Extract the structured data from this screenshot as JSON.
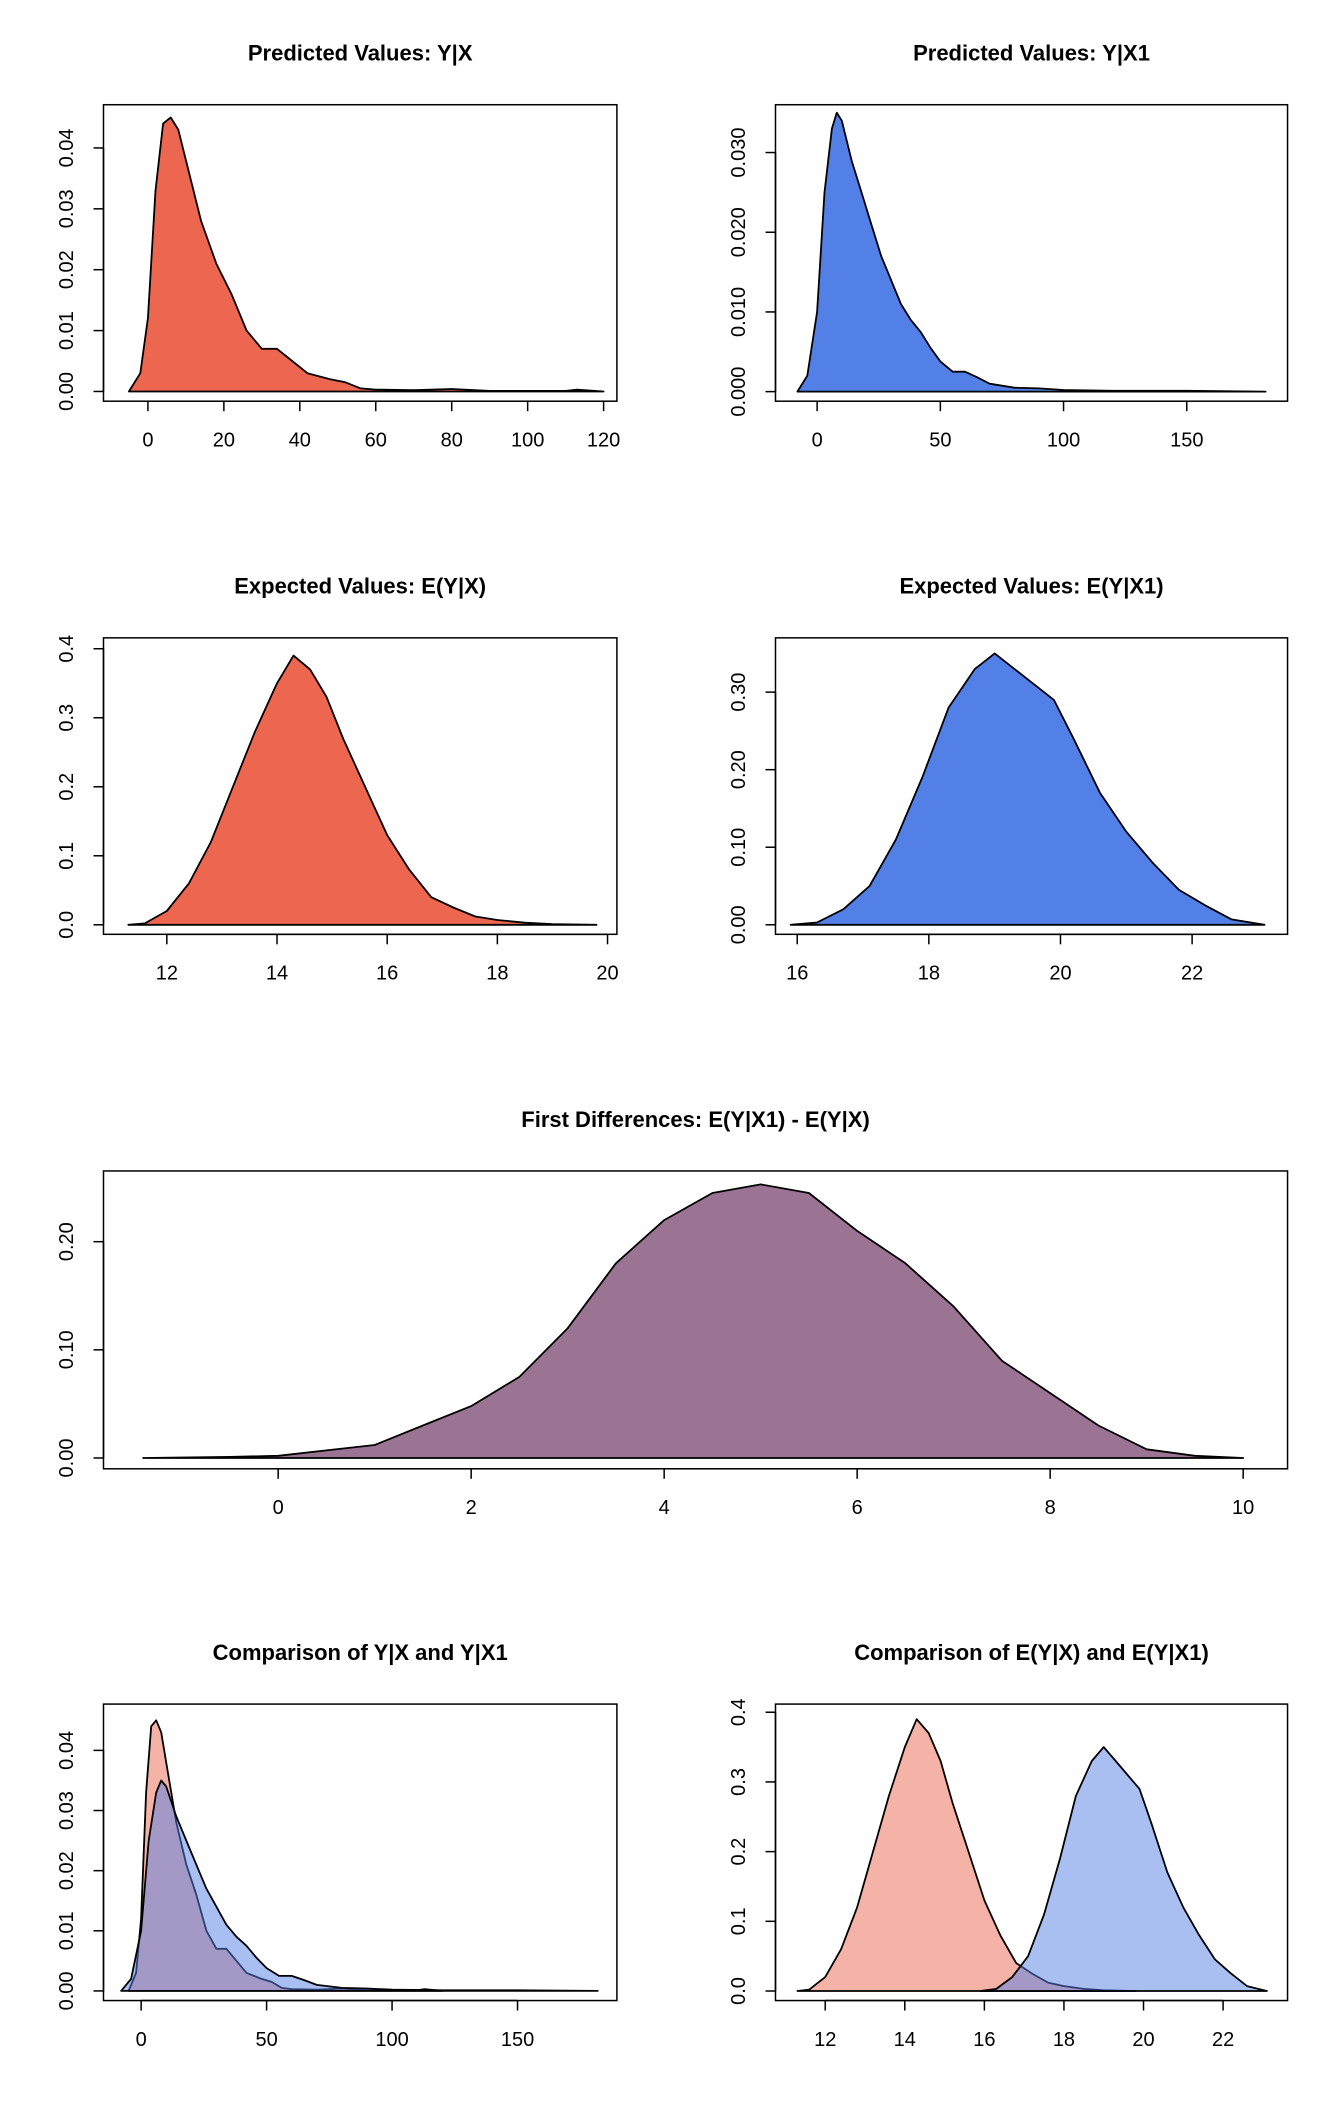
{
  "chart_data": [
    {
      "type": "area",
      "title": "Predicted Values: Y|X",
      "xlim": [
        -11.7,
        123.5
      ],
      "ylim": [
        -0.0016,
        0.0471
      ],
      "xticks": [
        0,
        20,
        40,
        60,
        80,
        100,
        120
      ],
      "yticks": [
        {
          "value": 0,
          "label": "0.00"
        },
        0.01,
        0.02,
        0.03,
        0.04
      ],
      "series": [
        {
          "color": "#ec6650",
          "x": [
            -5,
            -2,
            0,
            2,
            4,
            6,
            8,
            10,
            14,
            18,
            22,
            26,
            30,
            34,
            38,
            42,
            48,
            52,
            56,
            60,
            70,
            80,
            90,
            100,
            110,
            113,
            120
          ],
          "values": [
            0,
            0.003,
            0.012,
            0.033,
            0.044,
            0.045,
            0.043,
            0.038,
            0.028,
            0.021,
            0.016,
            0.01,
            0.007,
            0.007,
            0.005,
            0.003,
            0.002,
            0.0015,
            0.0005,
            0.0003,
            0.0002,
            0.0004,
            0.0001,
            0.0001,
            0.0001,
            0.0003,
            0
          ]
        }
      ]
    },
    {
      "type": "area",
      "title": "Predicted Values: Y|X1",
      "xlim": [
        -16.9,
        190.9
      ],
      "ylim": [
        -0.0012,
        0.036
      ],
      "xticks": [
        0,
        50,
        100,
        150
      ],
      "yticks": [
        {
          "value": 0,
          "label": "0.000"
        },
        {
          "value": 0.01,
          "label": "0.010"
        },
        {
          "value": 0.02,
          "label": "0.020"
        },
        {
          "value": 0.03,
          "label": "0.030"
        }
      ],
      "series": [
        {
          "color": "#5380e6",
          "x": [
            -8,
            -4,
            0,
            3,
            6,
            8,
            10,
            14,
            18,
            22,
            26,
            30,
            34,
            38,
            42,
            46,
            50,
            55,
            60,
            65,
            70,
            80,
            90,
            100,
            120,
            150,
            182
          ],
          "values": [
            0,
            0.002,
            0.01,
            0.025,
            0.033,
            0.035,
            0.034,
            0.029,
            0.025,
            0.021,
            0.017,
            0.014,
            0.011,
            0.009,
            0.0075,
            0.0055,
            0.0038,
            0.0025,
            0.0025,
            0.0018,
            0.001,
            0.0005,
            0.0004,
            0.0002,
            0.0001,
            0.0001,
            0
          ]
        }
      ]
    },
    {
      "type": "area",
      "title": "Expected Values: E(Y|X)",
      "xlim": [
        10.85,
        20.17
      ],
      "ylim": [
        -0.0138,
        0.4158
      ],
      "xticks": [
        12,
        14,
        16,
        18,
        20
      ],
      "yticks": [
        {
          "value": 0,
          "label": "0.0"
        },
        0.1,
        0.2,
        0.3,
        0.4
      ],
      "series": [
        {
          "color": "#ec6650",
          "x": [
            11.3,
            11.6,
            12,
            12.4,
            12.8,
            13.2,
            13.6,
            14,
            14.3,
            14.6,
            14.9,
            15.2,
            15.6,
            16,
            16.4,
            16.8,
            17.2,
            17.6,
            18,
            18.5,
            19,
            19.8
          ],
          "values": [
            0,
            0.002,
            0.02,
            0.06,
            0.12,
            0.2,
            0.28,
            0.35,
            0.39,
            0.37,
            0.33,
            0.27,
            0.2,
            0.13,
            0.08,
            0.04,
            0.025,
            0.012,
            0.007,
            0.003,
            0.001,
            0
          ]
        }
      ]
    },
    {
      "type": "area",
      "title": "Expected Values: E(Y|X1)",
      "xlim": [
        15.67,
        23.45
      ],
      "ylim": [
        -0.0123,
        0.37
      ],
      "xticks": [
        16,
        18,
        20,
        22
      ],
      "yticks": [
        {
          "value": 0,
          "label": "0.00"
        },
        {
          "value": 0.1,
          "label": "0.10"
        },
        {
          "value": 0.2,
          "label": "0.20"
        },
        {
          "value": 0.3,
          "label": "0.30"
        }
      ],
      "series": [
        {
          "color": "#5380e6",
          "x": [
            15.9,
            16.3,
            16.7,
            17.1,
            17.5,
            17.9,
            18.3,
            18.7,
            19,
            19.3,
            19.6,
            19.9,
            20.2,
            20.6,
            21,
            21.4,
            21.8,
            22.2,
            22.6,
            23.1
          ],
          "values": [
            0,
            0.003,
            0.02,
            0.05,
            0.11,
            0.19,
            0.28,
            0.33,
            0.35,
            0.33,
            0.31,
            0.29,
            0.24,
            0.17,
            0.12,
            0.08,
            0.045,
            0.025,
            0.007,
            0
          ]
        }
      ]
    },
    {
      "type": "area",
      "title": "First Differences: E(Y|X1) - E(Y|X)",
      "xlim": [
        -1.81,
        10.46
      ],
      "ylim": [
        -0.01,
        0.2654
      ],
      "xticks": [
        0,
        2,
        4,
        6,
        8,
        10
      ],
      "yticks": [
        {
          "value": 0,
          "label": "0.00"
        },
        {
          "value": 0.1,
          "label": "0.10"
        },
        {
          "value": 0.2,
          "label": "0.20"
        }
      ],
      "series": [
        {
          "color": "#9b7494",
          "x": [
            -1.4,
            -0.5,
            0,
            0.5,
            1,
            1.5,
            2,
            2.5,
            3,
            3.5,
            4,
            4.5,
            5,
            5.5,
            6,
            6.5,
            7,
            7.5,
            8,
            8.5,
            9,
            9.5,
            10
          ],
          "values": [
            0,
            0.001,
            0.002,
            0.007,
            0.012,
            0.03,
            0.048,
            0.075,
            0.12,
            0.18,
            0.22,
            0.245,
            0.253,
            0.245,
            0.21,
            0.18,
            0.14,
            0.09,
            0.06,
            0.03,
            0.008,
            0.002,
            0
          ]
        }
      ]
    },
    {
      "type": "area",
      "title": "Comparison of Y|X and Y|X1",
      "fill_opacity": 0.5,
      "xlim": [
        -15,
        189.6
      ],
      "ylim": [
        -0.0016,
        0.0477
      ],
      "xticks": [
        0,
        50,
        100,
        150
      ],
      "yticks": [
        {
          "value": 0,
          "label": "0.00"
        },
        0.01,
        0.02,
        0.03,
        0.04
      ],
      "series": [
        {
          "color": "#ec6650",
          "x": [
            -5,
            -2,
            0,
            2,
            4,
            6,
            8,
            10,
            14,
            18,
            22,
            26,
            30,
            34,
            38,
            42,
            48,
            52,
            56,
            60,
            70,
            80,
            90,
            100,
            110,
            113,
            120
          ],
          "values": [
            0,
            0.003,
            0.012,
            0.033,
            0.044,
            0.045,
            0.043,
            0.038,
            0.028,
            0.021,
            0.016,
            0.01,
            0.007,
            0.007,
            0.005,
            0.003,
            0.002,
            0.0015,
            0.0005,
            0.0003,
            0.0002,
            0.0004,
            0.0001,
            0.0001,
            0.0001,
            0.0003,
            0
          ]
        },
        {
          "color": "#5380e6",
          "x": [
            -8,
            -4,
            0,
            3,
            6,
            8,
            10,
            14,
            18,
            22,
            26,
            30,
            34,
            38,
            42,
            46,
            50,
            55,
            60,
            65,
            70,
            80,
            90,
            100,
            120,
            150,
            182
          ],
          "values": [
            0,
            0.002,
            0.01,
            0.025,
            0.033,
            0.035,
            0.034,
            0.029,
            0.025,
            0.021,
            0.017,
            0.014,
            0.011,
            0.009,
            0.0075,
            0.0055,
            0.0038,
            0.0025,
            0.0025,
            0.0018,
            0.001,
            0.0005,
            0.0004,
            0.0002,
            0.0001,
            0.0001,
            0
          ]
        }
      ]
    },
    {
      "type": "area",
      "title": "Comparison of E(Y|X) and E(Y|X1)",
      "fill_opacity": 0.5,
      "xlim": [
        10.75,
        23.62
      ],
      "ylim": [
        -0.0137,
        0.4117
      ],
      "xticks": [
        12,
        14,
        16,
        18,
        20,
        22
      ],
      "yticks": [
        {
          "value": 0,
          "label": "0.0"
        },
        0.1,
        0.2,
        0.3,
        0.4
      ],
      "series": [
        {
          "color": "#ec6650",
          "x": [
            11.3,
            11.6,
            12,
            12.4,
            12.8,
            13.2,
            13.6,
            14,
            14.3,
            14.6,
            14.9,
            15.2,
            15.6,
            16,
            16.4,
            16.8,
            17.2,
            17.6,
            18,
            18.5,
            19,
            19.8
          ],
          "values": [
            0,
            0.002,
            0.02,
            0.06,
            0.12,
            0.2,
            0.28,
            0.35,
            0.39,
            0.37,
            0.33,
            0.27,
            0.2,
            0.13,
            0.08,
            0.04,
            0.025,
            0.012,
            0.007,
            0.003,
            0.001,
            0
          ]
        },
        {
          "color": "#5380e6",
          "x": [
            15.9,
            16.3,
            16.7,
            17.1,
            17.5,
            17.9,
            18.3,
            18.7,
            19,
            19.3,
            19.6,
            19.9,
            20.2,
            20.6,
            21,
            21.4,
            21.8,
            22.2,
            22.6,
            23.1
          ],
          "values": [
            0,
            0.003,
            0.02,
            0.05,
            0.11,
            0.19,
            0.28,
            0.33,
            0.35,
            0.33,
            0.31,
            0.29,
            0.24,
            0.17,
            0.12,
            0.08,
            0.045,
            0.025,
            0.007,
            0
          ]
        }
      ]
    }
  ]
}
